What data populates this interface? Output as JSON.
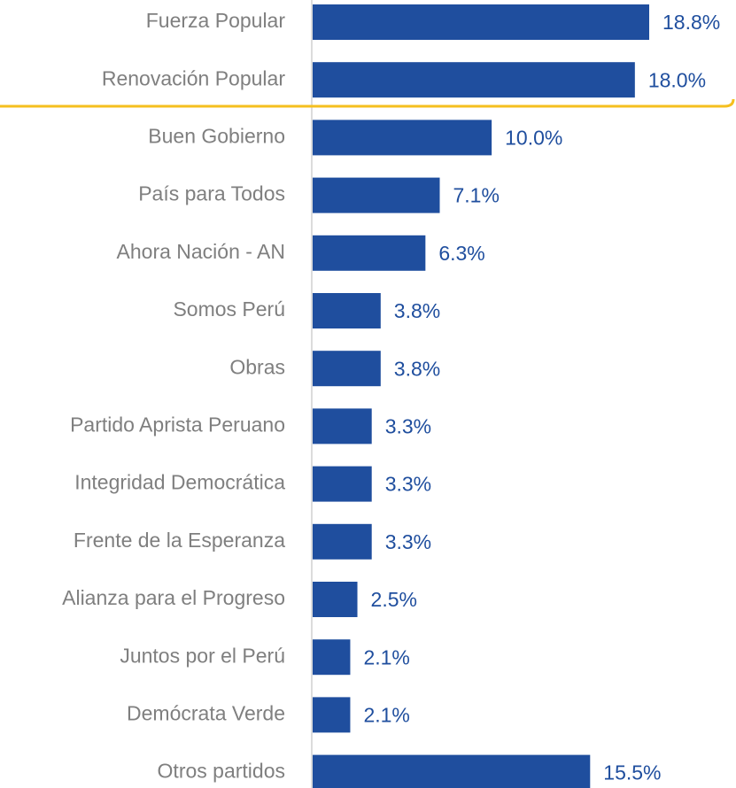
{
  "chart_data": {
    "type": "bar",
    "orientation": "horizontal",
    "categories": [
      "Fuerza Popular",
      "Renovación Popular",
      "Buen Gobierno",
      "País para Todos",
      "Ahora Nación - AN",
      "Somos Perú",
      "Obras",
      "Partido Aprista Peruano",
      "Integridad Democrática",
      "Frente de la Esperanza",
      "Alianza para el Progreso",
      "Juntos por el Perú",
      "Demócrata Verde",
      "Otros partidos"
    ],
    "values": [
      18.8,
      18.0,
      10.0,
      7.1,
      6.3,
      3.8,
      3.8,
      3.3,
      3.3,
      3.3,
      2.5,
      2.1,
      2.1,
      15.5
    ],
    "value_labels": [
      "18.8%",
      "18.0%",
      "10.0%",
      "7.1%",
      "6.3%",
      "3.8%",
      "3.8%",
      "3.3%",
      "3.3%",
      "3.3%",
      "2.5%",
      "2.1%",
      "2.1%",
      "15.5%"
    ],
    "color": "#1f4e9e"
  }
}
